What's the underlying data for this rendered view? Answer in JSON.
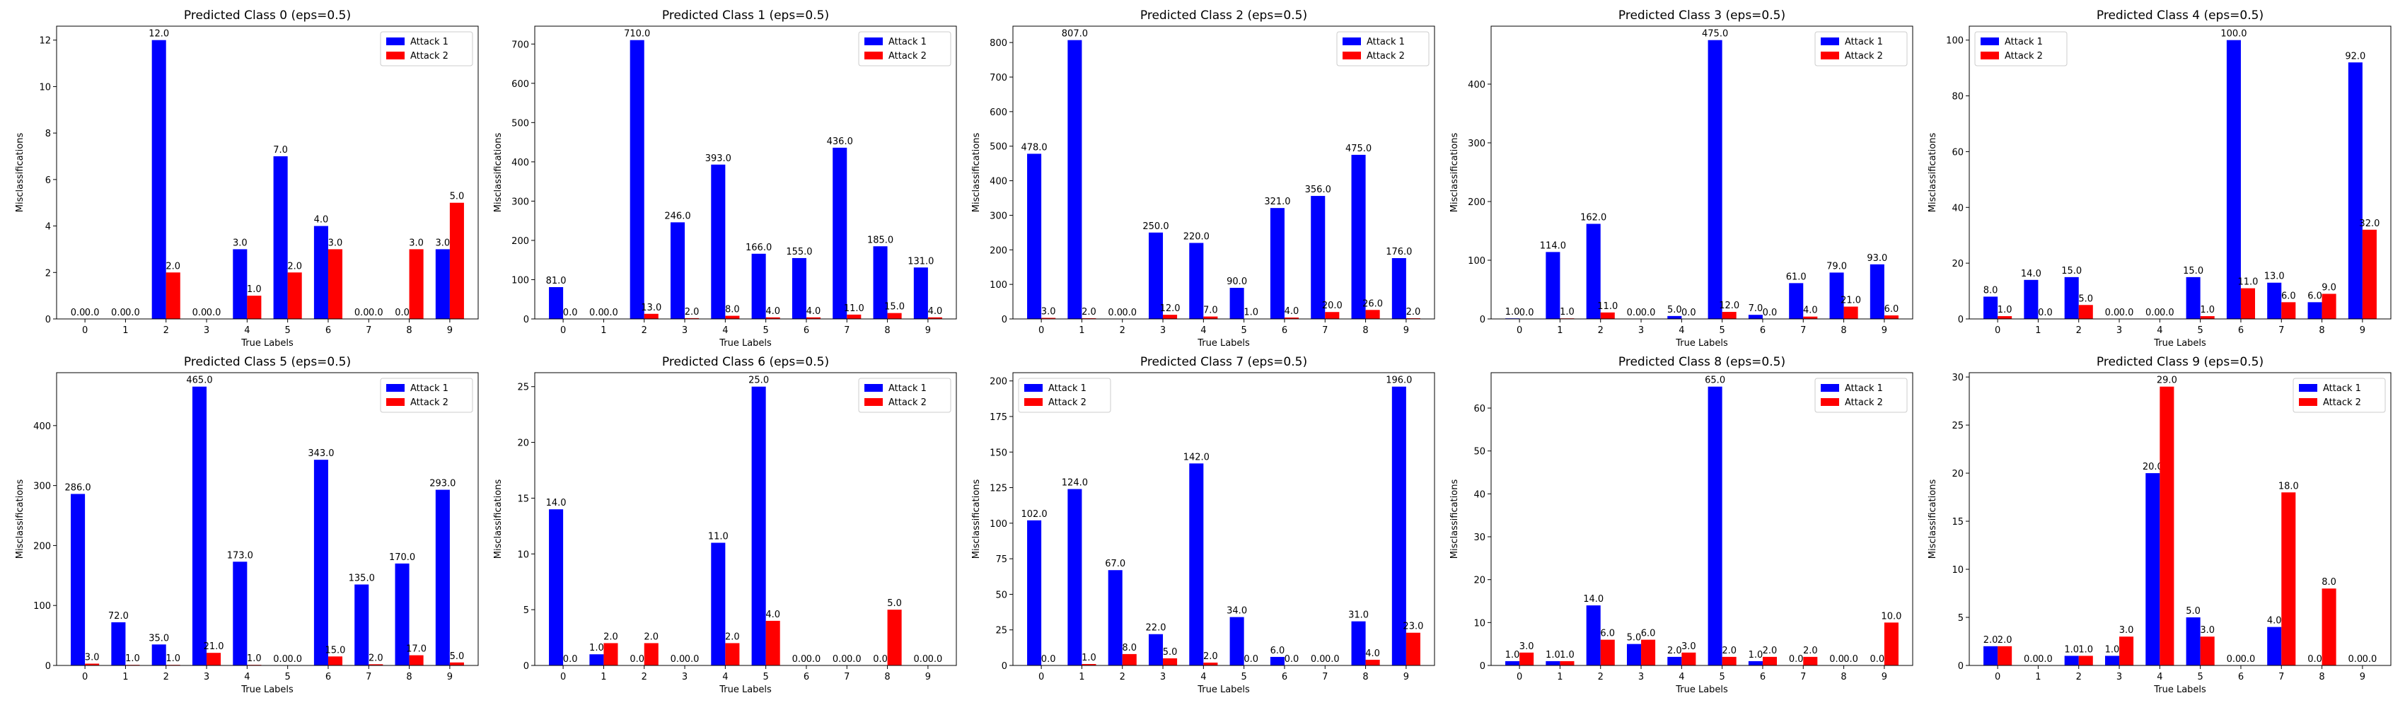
{
  "figure": {
    "series_names": [
      "Attack 1",
      "Attack 2"
    ],
    "series_colors": [
      "#0000ff",
      "#ff0000"
    ],
    "xlabel": "True Labels",
    "ylabel": "Misclassifications"
  },
  "chart_data": [
    {
      "type": "bar",
      "title": "Predicted Class 0 (eps=0.5)",
      "xlabel": "True Labels",
      "ylabel": "Misclassifications",
      "categories": [
        "0",
        "1",
        "2",
        "3",
        "4",
        "5",
        "6",
        "7",
        "8",
        "9"
      ],
      "series": [
        {
          "name": "Attack 1",
          "values": [
            0,
            0,
            12,
            0,
            3,
            7,
            4,
            0,
            0,
            3
          ]
        },
        {
          "name": "Attack 2",
          "values": [
            0,
            0,
            2,
            0,
            1,
            2,
            3,
            0,
            3,
            5
          ]
        }
      ],
      "ylim": [
        0,
        12.6
      ],
      "yticks": [
        0,
        2,
        4,
        6,
        8,
        10,
        12
      ],
      "legend": "upper right",
      "grid": false
    },
    {
      "type": "bar",
      "title": "Predicted Class 1 (eps=0.5)",
      "xlabel": "True Labels",
      "ylabel": "Misclassifications",
      "categories": [
        "0",
        "1",
        "2",
        "3",
        "4",
        "5",
        "6",
        "7",
        "8",
        "9"
      ],
      "series": [
        {
          "name": "Attack 1",
          "values": [
            81,
            0,
            710,
            246,
            393,
            166,
            155,
            436,
            185,
            131
          ]
        },
        {
          "name": "Attack 2",
          "values": [
            0,
            0,
            13,
            2,
            8,
            4,
            4,
            11,
            15,
            4
          ]
        }
      ],
      "ylim": [
        0,
        745.5
      ],
      "yticks": [
        0,
        100,
        200,
        300,
        400,
        500,
        600,
        700
      ],
      "legend": "upper right",
      "grid": false
    },
    {
      "type": "bar",
      "title": "Predicted Class 2 (eps=0.5)",
      "xlabel": "True Labels",
      "ylabel": "Misclassifications",
      "categories": [
        "0",
        "1",
        "2",
        "3",
        "4",
        "5",
        "6",
        "7",
        "8",
        "9"
      ],
      "series": [
        {
          "name": "Attack 1",
          "values": [
            478,
            807,
            0,
            250,
            220,
            90,
            321,
            356,
            475,
            176
          ]
        },
        {
          "name": "Attack 2",
          "values": [
            3,
            2,
            0,
            12,
            7,
            1,
            4,
            20,
            26,
            2
          ]
        }
      ],
      "ylim": [
        0,
        847.35
      ],
      "yticks": [
        0,
        100,
        200,
        300,
        400,
        500,
        600,
        700,
        800
      ],
      "legend": "upper right",
      "grid": false
    },
    {
      "type": "bar",
      "title": "Predicted Class 3 (eps=0.5)",
      "xlabel": "True Labels",
      "ylabel": "Misclassifications",
      "categories": [
        "0",
        "1",
        "2",
        "3",
        "4",
        "5",
        "6",
        "7",
        "8",
        "9"
      ],
      "series": [
        {
          "name": "Attack 1",
          "values": [
            1,
            114,
            162,
            0,
            5,
            475,
            7,
            61,
            79,
            93
          ]
        },
        {
          "name": "Attack 2",
          "values": [
            0,
            1,
            11,
            0,
            0,
            12,
            0,
            4,
            21,
            6
          ]
        }
      ],
      "ylim": [
        0,
        498.75
      ],
      "yticks": [
        0,
        100,
        200,
        300,
        400
      ],
      "legend": "upper right",
      "grid": false
    },
    {
      "type": "bar",
      "title": "Predicted Class 4 (eps=0.5)",
      "xlabel": "True Labels",
      "ylabel": "Misclassifications",
      "categories": [
        "0",
        "1",
        "2",
        "3",
        "4",
        "5",
        "6",
        "7",
        "8",
        "9"
      ],
      "series": [
        {
          "name": "Attack 1",
          "values": [
            8,
            14,
            15,
            0,
            0,
            15,
            100,
            13,
            6,
            92
          ]
        },
        {
          "name": "Attack 2",
          "values": [
            1,
            0,
            5,
            0,
            0,
            1,
            11,
            6,
            9,
            32
          ]
        }
      ],
      "ylim": [
        0,
        105
      ],
      "yticks": [
        0,
        20,
        40,
        60,
        80,
        100
      ],
      "legend": "upper left",
      "grid": false
    },
    {
      "type": "bar",
      "title": "Predicted Class 5 (eps=0.5)",
      "xlabel": "True Labels",
      "ylabel": "Misclassifications",
      "categories": [
        "0",
        "1",
        "2",
        "3",
        "4",
        "5",
        "6",
        "7",
        "8",
        "9"
      ],
      "series": [
        {
          "name": "Attack 1",
          "values": [
            286,
            72,
            35,
            465,
            173,
            0,
            343,
            135,
            170,
            293
          ]
        },
        {
          "name": "Attack 2",
          "values": [
            3,
            1,
            1,
            21,
            1,
            0,
            15,
            2,
            17,
            5
          ]
        }
      ],
      "ylim": [
        0,
        488.25
      ],
      "yticks": [
        0,
        100,
        200,
        300,
        400
      ],
      "legend": "upper right",
      "grid": false
    },
    {
      "type": "bar",
      "title": "Predicted Class 6 (eps=0.5)",
      "xlabel": "True Labels",
      "ylabel": "Misclassifications",
      "categories": [
        "0",
        "1",
        "2",
        "3",
        "4",
        "5",
        "6",
        "7",
        "8",
        "9"
      ],
      "series": [
        {
          "name": "Attack 1",
          "values": [
            14,
            1,
            0,
            0,
            11,
            25,
            0,
            0,
            0,
            0
          ]
        },
        {
          "name": "Attack 2",
          "values": [
            0,
            2,
            2,
            0,
            2,
            4,
            0,
            0,
            5,
            0
          ]
        }
      ],
      "ylim": [
        0,
        26.25
      ],
      "yticks": [
        0,
        5,
        10,
        15,
        20,
        25
      ],
      "legend": "upper right",
      "grid": false
    },
    {
      "type": "bar",
      "title": "Predicted Class 7 (eps=0.5)",
      "xlabel": "True Labels",
      "ylabel": "Misclassifications",
      "categories": [
        "0",
        "1",
        "2",
        "3",
        "4",
        "5",
        "6",
        "7",
        "8",
        "9"
      ],
      "series": [
        {
          "name": "Attack 1",
          "values": [
            102,
            124,
            67,
            22,
            142,
            34,
            6,
            0,
            31,
            196
          ]
        },
        {
          "name": "Attack 2",
          "values": [
            0,
            1,
            8,
            5,
            2,
            0,
            0,
            0,
            4,
            23
          ]
        }
      ],
      "ylim": [
        0,
        205.8
      ],
      "yticks": [
        0,
        25,
        50,
        75,
        100,
        125,
        150,
        175,
        200
      ],
      "legend": "upper left",
      "grid": false
    },
    {
      "type": "bar",
      "title": "Predicted Class 8 (eps=0.5)",
      "xlabel": "True Labels",
      "ylabel": "Misclassifications",
      "categories": [
        "0",
        "1",
        "2",
        "3",
        "4",
        "5",
        "6",
        "7",
        "8",
        "9"
      ],
      "series": [
        {
          "name": "Attack 1",
          "values": [
            1,
            1,
            14,
            5,
            2,
            65,
            1,
            0,
            0,
            0
          ]
        },
        {
          "name": "Attack 2",
          "values": [
            3,
            1,
            6,
            6,
            3,
            2,
            2,
            2,
            0,
            10
          ]
        }
      ],
      "ylim": [
        0,
        68.25
      ],
      "yticks": [
        0,
        10,
        20,
        30,
        40,
        50,
        60
      ],
      "legend": "upper right",
      "grid": false
    },
    {
      "type": "bar",
      "title": "Predicted Class 9 (eps=0.5)",
      "xlabel": "True Labels",
      "ylabel": "Misclassifications",
      "categories": [
        "0",
        "1",
        "2",
        "3",
        "4",
        "5",
        "6",
        "7",
        "8",
        "9"
      ],
      "series": [
        {
          "name": "Attack 1",
          "values": [
            2,
            0,
            1,
            1,
            20,
            5,
            0,
            4,
            0,
            0
          ]
        },
        {
          "name": "Attack 2",
          "values": [
            2,
            0,
            1,
            3,
            29,
            3,
            0,
            18,
            8,
            0
          ]
        }
      ],
      "ylim": [
        0,
        30.45
      ],
      "yticks": [
        0,
        5,
        10,
        15,
        20,
        25,
        30
      ],
      "legend": "upper right",
      "grid": false
    }
  ]
}
